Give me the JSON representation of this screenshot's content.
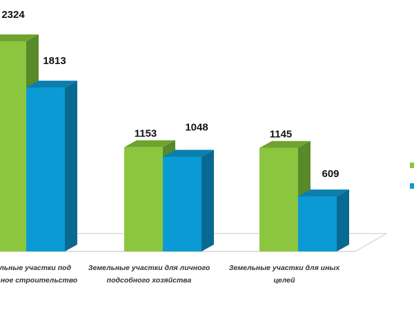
{
  "chart_data": {
    "type": "bar",
    "categories": [
      [
        "Земельные участки под",
        "жилищное строительство"
      ],
      [
        "Земельные участки для личного",
        "подсобного хозяйства"
      ],
      [
        "Земельные участки для иных",
        "целей"
      ]
    ],
    "series": [
      {
        "values": [
          2324,
          1153,
          1145
        ],
        "color": "#8cc63f",
        "color_top": "#6fa32e",
        "color_side": "#58892a"
      },
      {
        "values": [
          1813,
          1048,
          609
        ],
        "color": "#0b9ad4",
        "color_top": "#0a7fb0",
        "color_side": "#086a93"
      }
    ],
    "ylim": [
      0,
      2324
    ],
    "grid": false,
    "legend": "right",
    "style": "3d-bars"
  }
}
